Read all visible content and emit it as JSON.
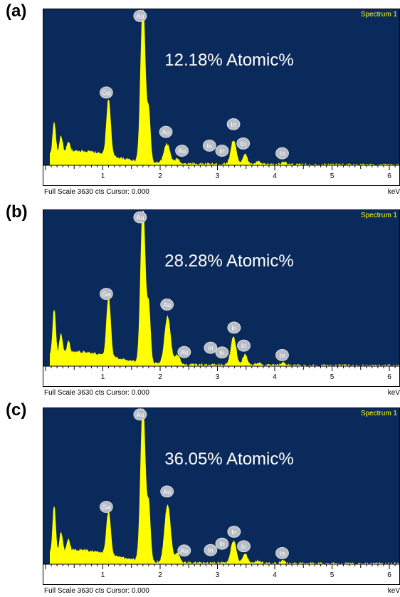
{
  "colors": {
    "background": "#0b2a5c",
    "spectrum": "#ffff00",
    "badge_fill": "#b8bcc4",
    "badge_text": "#ffffff",
    "spectrum_label": "#ffff00",
    "axis": "#000000"
  },
  "chart_data": [
    {
      "type": "line",
      "panel_label": "(a)",
      "spectrum_label": "Spectrum 1",
      "annotation": "12.18% Atomic%",
      "footer": "Full Scale 3630 cts Cursor: 0.000",
      "xunit": "keV",
      "xlim": [
        0.0,
        6.3
      ],
      "ylim": [
        0,
        3630
      ],
      "x_ticks": [
        1,
        2,
        3,
        4,
        5,
        6
      ],
      "peaks": [
        {
          "x": 0.15,
          "y": 720,
          "w": 0.025
        },
        {
          "x": 0.27,
          "y": 380,
          "w": 0.025
        },
        {
          "x": 0.4,
          "y": 220,
          "w": 0.025
        },
        {
          "x": 1.1,
          "y": 1300,
          "w": 0.035
        },
        {
          "x": 1.7,
          "y": 3630,
          "w": 0.04
        },
        {
          "x": 1.8,
          "y": 1150,
          "w": 0.03
        },
        {
          "x": 2.12,
          "y": 450,
          "w": 0.05
        },
        {
          "x": 2.3,
          "y": 110,
          "w": 0.04
        },
        {
          "x": 3.28,
          "y": 560,
          "w": 0.045
        },
        {
          "x": 3.48,
          "y": 230,
          "w": 0.04
        },
        {
          "x": 3.71,
          "y": 60,
          "w": 0.04
        },
        {
          "x": 4.15,
          "y": 60,
          "w": 0.04
        }
      ],
      "markers": [
        {
          "label": "Au",
          "x": 1.65,
          "y": 3490
        },
        {
          "label": "Ga",
          "x": 1.06,
          "y": 1700
        },
        {
          "label": "Au",
          "x": 2.1,
          "y": 780
        },
        {
          "label": "Au",
          "x": 2.38,
          "y": 340
        },
        {
          "label": "In",
          "x": 2.86,
          "y": 460
        },
        {
          "label": "In",
          "x": 3.08,
          "y": 340
        },
        {
          "label": "In",
          "x": 3.28,
          "y": 960
        },
        {
          "label": "In",
          "x": 3.45,
          "y": 510
        },
        {
          "label": "In",
          "x": 4.13,
          "y": 280
        }
      ]
    },
    {
      "type": "line",
      "panel_label": "(b)",
      "spectrum_label": "Spectrum 1",
      "annotation": "28.28% Atomic%",
      "footer": "Full Scale 3630 cts Cursor: 0.000",
      "xunit": "keV",
      "xlim": [
        0.0,
        6.3
      ],
      "ylim": [
        0,
        3630
      ],
      "x_ticks": [
        1,
        2,
        3,
        4,
        5,
        6
      ],
      "peaks": [
        {
          "x": 0.15,
          "y": 1050,
          "w": 0.025
        },
        {
          "x": 0.27,
          "y": 450,
          "w": 0.025
        },
        {
          "x": 0.4,
          "y": 260,
          "w": 0.025
        },
        {
          "x": 1.1,
          "y": 1360,
          "w": 0.035
        },
        {
          "x": 1.7,
          "y": 3630,
          "w": 0.04
        },
        {
          "x": 1.8,
          "y": 1300,
          "w": 0.03
        },
        {
          "x": 2.13,
          "y": 1120,
          "w": 0.05
        },
        {
          "x": 2.3,
          "y": 230,
          "w": 0.04
        },
        {
          "x": 3.28,
          "y": 650,
          "w": 0.045
        },
        {
          "x": 3.48,
          "y": 250,
          "w": 0.04
        },
        {
          "x": 3.71,
          "y": 60,
          "w": 0.04
        },
        {
          "x": 4.15,
          "y": 60,
          "w": 0.04
        }
      ],
      "markers": [
        {
          "label": "Au",
          "x": 1.65,
          "y": 3480
        },
        {
          "label": "Ga",
          "x": 1.06,
          "y": 1690
        },
        {
          "label": "Au",
          "x": 2.12,
          "y": 1440
        },
        {
          "label": "Au",
          "x": 2.42,
          "y": 330
        },
        {
          "label": "In",
          "x": 2.88,
          "y": 430
        },
        {
          "label": "In",
          "x": 3.08,
          "y": 320
        },
        {
          "label": "In",
          "x": 3.29,
          "y": 900
        },
        {
          "label": "In",
          "x": 3.46,
          "y": 480
        },
        {
          "label": "In",
          "x": 4.13,
          "y": 260
        }
      ]
    },
    {
      "type": "line",
      "panel_label": "(c)",
      "spectrum_label": "Spectrum 1",
      "annotation": "36.05% Atomic%",
      "footer": "Full Scale 3630 cts Cursor: 0.000",
      "xunit": "keV",
      "xlim": [
        0.0,
        6.3
      ],
      "ylim": [
        0,
        3630
      ],
      "x_ticks": [
        1,
        2,
        3,
        4,
        5,
        6
      ],
      "peaks": [
        {
          "x": 0.15,
          "y": 1080,
          "w": 0.025
        },
        {
          "x": 0.27,
          "y": 420,
          "w": 0.025
        },
        {
          "x": 0.4,
          "y": 240,
          "w": 0.025
        },
        {
          "x": 1.1,
          "y": 1000,
          "w": 0.035
        },
        {
          "x": 1.7,
          "y": 3630,
          "w": 0.04
        },
        {
          "x": 1.8,
          "y": 1300,
          "w": 0.03
        },
        {
          "x": 2.13,
          "y": 1350,
          "w": 0.05
        },
        {
          "x": 2.3,
          "y": 230,
          "w": 0.04
        },
        {
          "x": 3.28,
          "y": 520,
          "w": 0.045
        },
        {
          "x": 3.48,
          "y": 230,
          "w": 0.04
        },
        {
          "x": 3.71,
          "y": 60,
          "w": 0.04
        },
        {
          "x": 4.15,
          "y": 60,
          "w": 0.04
        }
      ],
      "markers": [
        {
          "label": "Au",
          "x": 1.65,
          "y": 3500
        },
        {
          "label": "Ga",
          "x": 1.06,
          "y": 1340
        },
        {
          "label": "Au",
          "x": 2.12,
          "y": 1700
        },
        {
          "label": "Au",
          "x": 2.42,
          "y": 320
        },
        {
          "label": "In",
          "x": 2.88,
          "y": 330
        },
        {
          "label": "In",
          "x": 3.08,
          "y": 480
        },
        {
          "label": "In",
          "x": 3.29,
          "y": 760
        },
        {
          "label": "In",
          "x": 3.46,
          "y": 420
        },
        {
          "label": "In",
          "x": 4.13,
          "y": 260
        }
      ]
    }
  ]
}
